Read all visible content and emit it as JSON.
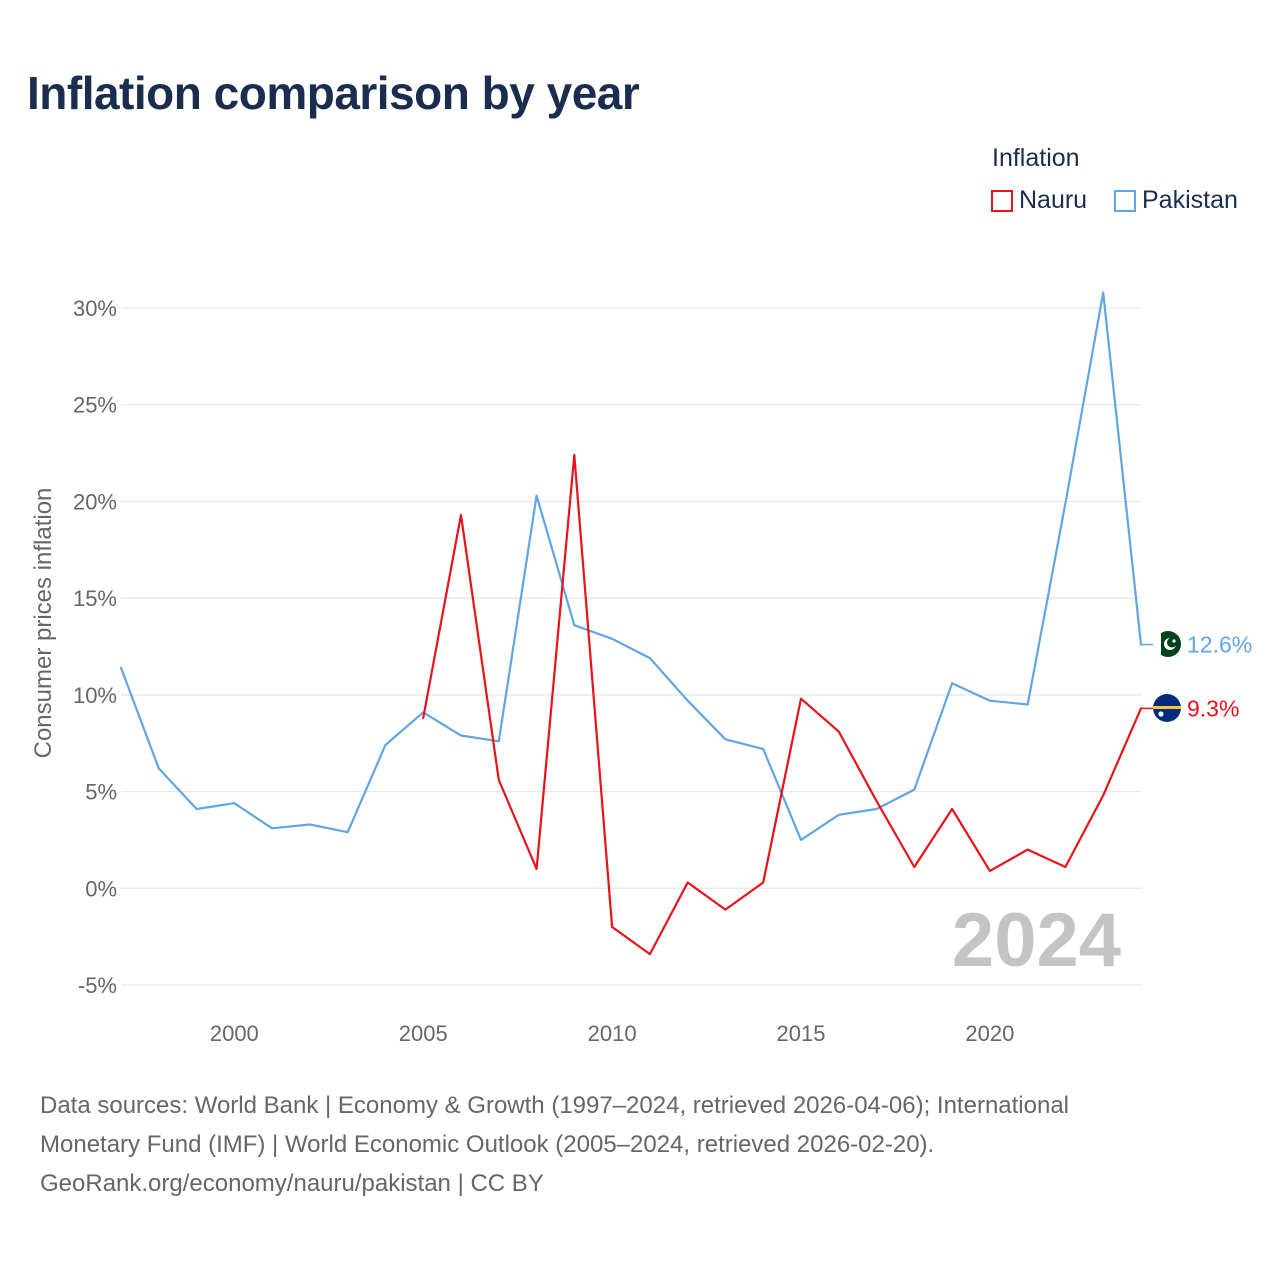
{
  "title": "Inflation comparison by year",
  "legend": {
    "title": "Inflation",
    "items": [
      {
        "label": "Nauru",
        "color": "#e8121a"
      },
      {
        "label": "Pakistan",
        "color": "#62a5e4"
      }
    ]
  },
  "year_watermark": "2024",
  "footer": {
    "line1": "Data sources: World Bank | Economy & Growth (1997–2024, retrieved 2026-04-06); International",
    "line2": "Monetary Fund (IMF) | World Economic Outlook (2005–2024, retrieved 2026-02-20).",
    "line3": "GeoRank.org/economy/nauru/pakistan | CC BY"
  },
  "chart_data": {
    "type": "line",
    "title": "Inflation comparison by year",
    "xlabel": "",
    "ylabel": "Consumer prices inflation",
    "xlim": [
      1997,
      2024
    ],
    "ylim": [
      -5,
      30
    ],
    "x_ticks": [
      2000,
      2005,
      2010,
      2015,
      2020
    ],
    "x_tick_labels": [
      "2000",
      "2005",
      "2010",
      "2015",
      "2020"
    ],
    "y_ticks": [
      -5,
      0,
      5,
      10,
      15,
      20,
      25,
      30
    ],
    "y_tick_labels": [
      "-5%",
      "0%",
      "5%",
      "10%",
      "15%",
      "20%",
      "25%",
      "30%"
    ],
    "grid": true,
    "legend_position": "top-right",
    "series": [
      {
        "name": "Nauru",
        "color": "#e8121a",
        "end_label": "9.3%",
        "x": [
          2005,
          2006,
          2007,
          2008,
          2009,
          2010,
          2011,
          2012,
          2013,
          2014,
          2015,
          2016,
          2017,
          2018,
          2019,
          2020,
          2021,
          2022,
          2023,
          2024
        ],
        "values": [
          8.8,
          19.3,
          5.6,
          1.0,
          22.4,
          -2.0,
          -3.4,
          0.3,
          -1.1,
          0.3,
          9.8,
          8.1,
          4.5,
          1.1,
          4.1,
          0.9,
          2.0,
          1.1,
          4.8,
          9.3
        ]
      },
      {
        "name": "Pakistan",
        "color": "#62a5e4",
        "end_label": "12.6%",
        "x": [
          1997,
          1998,
          1999,
          2000,
          2001,
          2002,
          2003,
          2004,
          2005,
          2006,
          2007,
          2008,
          2009,
          2010,
          2011,
          2012,
          2013,
          2014,
          2015,
          2016,
          2017,
          2018,
          2019,
          2020,
          2021,
          2022,
          2023,
          2024
        ],
        "values": [
          11.4,
          6.2,
          4.1,
          4.4,
          3.1,
          3.3,
          2.9,
          7.4,
          9.1,
          7.9,
          7.6,
          20.3,
          13.6,
          12.9,
          11.9,
          9.7,
          7.7,
          7.2,
          2.5,
          3.8,
          4.1,
          5.1,
          10.6,
          9.7,
          9.5,
          19.9,
          30.8,
          12.6
        ]
      }
    ]
  }
}
